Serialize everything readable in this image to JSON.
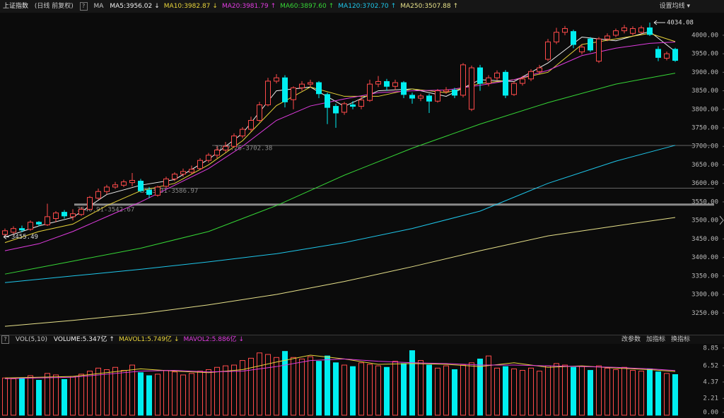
{
  "header": {
    "title": "上证指数",
    "period": "(日线 前复权)",
    "help": "?",
    "ma_label": "MA",
    "ma_items": [
      {
        "text": "MA5:3956.02",
        "arrow": "↓"
      },
      {
        "text": "MA10:3982.87",
        "arrow": "↓"
      },
      {
        "text": "MA20:3981.79",
        "arrow": "↑"
      },
      {
        "text": "MA60:3897.60",
        "arrow": "↑"
      },
      {
        "text": "MA120:3702.70",
        "arrow": "↑"
      },
      {
        "text": "MA250:3507.88",
        "arrow": "↑"
      }
    ],
    "settings": "设置均线 ▾"
  },
  "volume_header": {
    "help": "?",
    "name": "VOL(5,10)",
    "items": [
      {
        "text": "VOLUME:5.347亿",
        "arrow": "↑"
      },
      {
        "text": "MAVOL1:5.749亿",
        "arrow": "↓"
      },
      {
        "text": "MAVOL2:5.886亿",
        "arrow": "↓"
      }
    ],
    "buttons": [
      "改参数",
      "加指标",
      "换指标"
    ]
  },
  "chart_data": [
    {
      "type": "candlestick",
      "up_color": "#ff4a4a",
      "down_color": "#00eef0",
      "open": [
        3462,
        3468,
        3478,
        3476,
        3495,
        3488,
        3505,
        3522,
        3510,
        3516,
        3530,
        3560,
        3578,
        3590,
        3595,
        3602,
        3606,
        3582,
        3568,
        3592,
        3612,
        3625,
        3630,
        3640,
        3662,
        3676,
        3690,
        3700,
        3728,
        3746,
        3770,
        3812,
        3876,
        3885,
        3826,
        3858,
        3868,
        3872,
        3840,
        3808,
        3792,
        3812,
        3808,
        3824,
        3868,
        3875,
        3862,
        3872,
        3838,
        3830,
        3836,
        3822,
        3848,
        3852,
        3838,
        3800,
        3912,
        3870,
        3885,
        3900,
        3840,
        3870,
        3882,
        3902,
        3935,
        3982,
        4008,
        4010,
        3955,
        3990,
        3930,
        3990,
        4000,
        4012,
        4005,
        4008,
        4020,
        3962,
        3938,
        3962
      ],
      "close": [
        3472,
        3478,
        3474,
        3495,
        3490,
        3510,
        3520,
        3512,
        3518,
        3530,
        3562,
        3578,
        3590,
        3596,
        3604,
        3608,
        3580,
        3570,
        3590,
        3612,
        3625,
        3632,
        3638,
        3662,
        3676,
        3690,
        3700,
        3728,
        3746,
        3770,
        3812,
        3876,
        3885,
        3820,
        3858,
        3868,
        3872,
        3842,
        3805,
        3790,
        3815,
        3808,
        3825,
        3868,
        3875,
        3862,
        3872,
        3840,
        3830,
        3836,
        3822,
        3850,
        3852,
        3838,
        3920,
        3912,
        3870,
        3885,
        3898,
        3838,
        3870,
        3882,
        3902,
        3912,
        3982,
        4008,
        4018,
        3975,
        3968,
        3960,
        3990,
        3998,
        4012,
        4020,
        4018,
        4020,
        4002,
        3940,
        3950,
        3932
      ],
      "high": [
        3478,
        3484,
        3486,
        3500,
        3498,
        3545,
        3525,
        3528,
        3530,
        3536,
        3566,
        3586,
        3596,
        3604,
        3610,
        3628,
        3612,
        3590,
        3594,
        3618,
        3630,
        3640,
        3648,
        3668,
        3682,
        3700,
        3712,
        3735,
        3752,
        3780,
        3820,
        3885,
        3895,
        3892,
        3862,
        3876,
        3880,
        3876,
        3845,
        3815,
        3820,
        3822,
        3835,
        3880,
        3890,
        3882,
        3880,
        3876,
        3845,
        3842,
        3842,
        3855,
        3860,
        3858,
        3925,
        3918,
        3920,
        3892,
        3905,
        3906,
        3875,
        3890,
        3908,
        3920,
        3990,
        4020,
        4025,
        4015,
        3975,
        3995,
        3995,
        4005,
        4018,
        4028,
        4024,
        4026,
        4034.08,
        3970,
        3956,
        3966
      ],
      "low": [
        3455.49,
        3462,
        3468,
        3472,
        3484,
        3485,
        3495,
        3505,
        3500,
        3512,
        3528,
        3556,
        3570,
        3585,
        3590,
        3592,
        3575,
        3560,
        3564,
        3588,
        3606,
        3618,
        3625,
        3636,
        3656,
        3668,
        3684,
        3696,
        3722,
        3740,
        3766,
        3808,
        3870,
        3805,
        3800,
        3850,
        3860,
        3830,
        3760,
        3750,
        3785,
        3800,
        3800,
        3820,
        3860,
        3850,
        3852,
        3830,
        3815,
        3822,
        3790,
        3818,
        3842,
        3830,
        3832,
        3795,
        3850,
        3862,
        3878,
        3830,
        3836,
        3864,
        3876,
        3896,
        3930,
        3976,
        4000,
        3965,
        3948,
        3955,
        3925,
        3984,
        3995,
        4005,
        4000,
        4004,
        3998,
        3930,
        3932,
        3928
      ],
      "series": [
        {
          "name": "MA5",
          "color": "#f0f0f0",
          "x": [
            0,
            4,
            8,
            12,
            16,
            20,
            24,
            28,
            32,
            36,
            40,
            44,
            48,
            52,
            56,
            60,
            64,
            68,
            72,
            76,
            79
          ],
          "values": [
            3455,
            3485,
            3508,
            3570,
            3595,
            3610,
            3665,
            3735,
            3850,
            3860,
            3808,
            3850,
            3855,
            3835,
            3880,
            3875,
            3925,
            3995,
            3985,
            4010,
            3956.02
          ]
        },
        {
          "name": "MA10",
          "color": "#e8d43a",
          "x": [
            0,
            4,
            8,
            12,
            16,
            20,
            24,
            28,
            32,
            36,
            40,
            44,
            48,
            52,
            56,
            60,
            64,
            68,
            72,
            76,
            79
          ],
          "values": [
            3440,
            3470,
            3490,
            3540,
            3580,
            3600,
            3650,
            3715,
            3810,
            3860,
            3835,
            3835,
            3855,
            3845,
            3870,
            3880,
            3900,
            3975,
            3990,
            4005,
            3982.87
          ]
        },
        {
          "name": "MA20",
          "color": "#e03ce0",
          "x": [
            0,
            4,
            8,
            12,
            16,
            20,
            24,
            28,
            32,
            36,
            40,
            44,
            48,
            52,
            56,
            60,
            64,
            68,
            72,
            76,
            79
          ],
          "values": [
            3418,
            3437,
            3470,
            3510,
            3550,
            3595,
            3640,
            3700,
            3770,
            3809,
            3828,
            3845,
            3850,
            3852,
            3865,
            3880,
            3905,
            3945,
            3965,
            3978,
            3981.79
          ]
        },
        {
          "name": "MA60",
          "color": "#36d636",
          "x": [
            0,
            8,
            16,
            24,
            32,
            40,
            48,
            56,
            64,
            72,
            79
          ],
          "values": [
            3355,
            3390,
            3425,
            3470,
            3540,
            3622,
            3695,
            3760,
            3818,
            3868,
            3897.6
          ]
        },
        {
          "name": "MA120",
          "color": "#1ec6ea",
          "x": [
            0,
            8,
            16,
            24,
            32,
            40,
            48,
            56,
            64,
            72,
            79
          ],
          "values": [
            3332,
            3350,
            3368,
            3388,
            3410,
            3440,
            3478,
            3525,
            3600,
            3660,
            3702.7
          ]
        },
        {
          "name": "MA250",
          "color": "#e6e08a",
          "x": [
            0,
            8,
            16,
            24,
            32,
            40,
            48,
            56,
            64,
            72,
            79
          ],
          "values": [
            3214,
            3230,
            3248,
            3272,
            3300,
            3335,
            3375,
            3418,
            3458,
            3485,
            3507.88
          ]
        }
      ],
      "ylim": [
        3199,
        4057
      ],
      "yticks": [
        {
          "value": 3250,
          "label": "3250.00"
        },
        {
          "value": 3300,
          "label": "3300.00"
        },
        {
          "value": 3350,
          "label": "3350.00"
        },
        {
          "value": 3400,
          "label": "3400.00"
        },
        {
          "value": 3450,
          "label": "3450.00"
        },
        {
          "value": 3500,
          "label": "3500.00"
        },
        {
          "value": 3550,
          "label": "3550.00"
        },
        {
          "value": 3600,
          "label": "3600.00"
        },
        {
          "value": 3650,
          "label": "3650.00"
        },
        {
          "value": 3700,
          "label": "3700.00"
        },
        {
          "value": 3750,
          "label": "3750.00"
        },
        {
          "value": 3800,
          "label": "3800.00"
        },
        {
          "value": 3850,
          "label": "3850.00"
        },
        {
          "value": 3900,
          "label": "3900.00"
        },
        {
          "value": 3950,
          "label": "3950.00"
        },
        {
          "value": 4000,
          "label": "4000.00"
        }
      ],
      "price_lines": [
        {
          "value": 3702.38,
          "label": "3702.26-3702.38"
        },
        {
          "value": 3586.97,
          "label": "3583.31-3586.97"
        },
        {
          "value": 3542.67,
          "label": "3540.91-3542.67"
        }
      ],
      "high_mark": 4034.08,
      "low_mark": 3455.49
    },
    {
      "type": "volume",
      "values": [
        4.9,
        4.8,
        4.9,
        5.2,
        4.6,
        5.5,
        5.3,
        4.7,
        5.1,
        5.4,
        5.8,
        6.2,
        6.0,
        6.3,
        5.9,
        6.6,
        5.6,
        5.2,
        5.4,
        5.9,
        5.7,
        5.3,
        5.5,
        5.8,
        6.0,
        6.3,
        6.5,
        6.6,
        7.2,
        7.5,
        8.2,
        8.0,
        7.6,
        8.4,
        7.6,
        7.4,
        7.7,
        7.1,
        7.8,
        6.9,
        6.6,
        6.4,
        6.9,
        6.7,
        6.5,
        6.3,
        7.1,
        6.8,
        8.5,
        7.2,
        6.6,
        6.2,
        6.5,
        6.0,
        6.6,
        6.9,
        7.4,
        7.8,
        6.2,
        6.4,
        6.1,
        5.9,
        6.2,
        5.8,
        6.5,
        6.8,
        6.6,
        6.3,
        6.4,
        5.9,
        6.5,
        6.2,
        6.0,
        6.3,
        5.9,
        5.8,
        6.1,
        5.7,
        5.5,
        5.347
      ],
      "series": [
        {
          "name": "MAVOL1",
          "color": "#e8d43a",
          "x": [
            0,
            4,
            8,
            12,
            16,
            20,
            24,
            28,
            32,
            36,
            40,
            44,
            48,
            52,
            56,
            60,
            64,
            68,
            72,
            76,
            79
          ],
          "values": [
            4.9,
            5.0,
            5.1,
            5.6,
            6.1,
            5.8,
            5.6,
            6.0,
            7.0,
            7.9,
            7.4,
            6.7,
            6.8,
            6.7,
            6.4,
            6.9,
            6.3,
            6.5,
            6.2,
            6.0,
            5.749
          ]
        },
        {
          "name": "MAVOL2",
          "color": "#e03ce0",
          "x": [
            0,
            4,
            8,
            12,
            16,
            20,
            24,
            28,
            32,
            36,
            40,
            44,
            48,
            52,
            56,
            60,
            64,
            68,
            72,
            76,
            79
          ],
          "values": [
            4.8,
            4.9,
            5.0,
            5.4,
            5.8,
            5.9,
            5.7,
            5.8,
            6.4,
            7.2,
            7.4,
            7.1,
            6.9,
            6.8,
            6.6,
            6.6,
            6.5,
            6.4,
            6.3,
            6.1,
            5.886
          ]
        }
      ],
      "ylim": [
        0,
        9.3
      ],
      "yticks": [
        {
          "value": 0,
          "label": "0.00"
        },
        {
          "value": 2.21,
          "label": "2.21"
        },
        {
          "value": 4.37,
          "label": "4.37"
        },
        {
          "value": 6.52,
          "label": "6.52"
        },
        {
          "value": 8.85,
          "label": "8.85"
        }
      ]
    }
  ]
}
